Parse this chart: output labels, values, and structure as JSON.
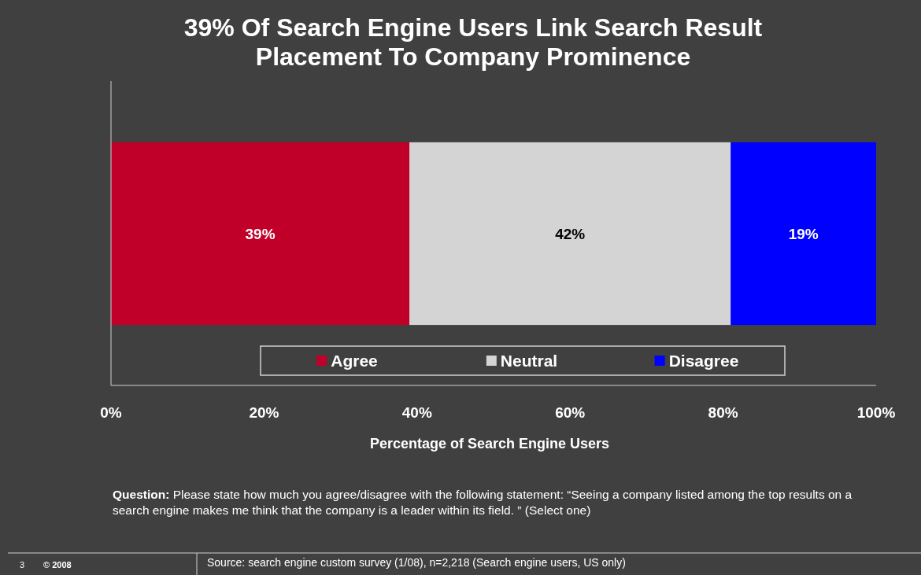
{
  "chart_data": {
    "type": "bar",
    "orientation": "horizontal",
    "stacked": true,
    "title": "39% Of Search Engine Users Link Search Result Placement To Company Prominence",
    "xlabel": "Percentage of Search Engine Users",
    "categories": [
      null
    ],
    "series": [
      {
        "name": "Agree",
        "color": "#c00028",
        "values": [
          39
        ]
      },
      {
        "name": "Neutral",
        "color": "#d4d4d4",
        "values": [
          42
        ]
      },
      {
        "name": "Disagree",
        "color": "#0000ff",
        "values": [
          19
        ]
      }
    ],
    "xlim": [
      0,
      100
    ],
    "xticks": [
      {
        "value": 0,
        "label": "0%"
      },
      {
        "value": 20,
        "label": "20%"
      },
      {
        "value": 40,
        "label": "40%"
      },
      {
        "value": 60,
        "label": "60%"
      },
      {
        "value": 80,
        "label": "80%"
      },
      {
        "value": 100,
        "label": "100%"
      }
    ],
    "value_labels": [
      [
        "39%"
      ],
      [
        "42%"
      ],
      [
        "19%"
      ]
    ],
    "legend": "bottom",
    "tick_labels": "x",
    "annotations": [
      "Question: Please state how much you agree/disagree with the following statement: “Seeing a company listed among the top results on a search engine makes me think that the company is a leader within its field. ” (Select one)",
      "3",
      "© 2008",
      "Source: search engine custom survey (1/08), n=2,218 (Search engine users, US only)"
    ]
  }
}
